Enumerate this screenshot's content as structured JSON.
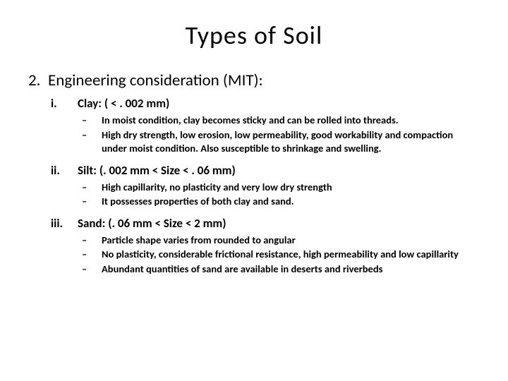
{
  "title": "Types of Soil",
  "main": {
    "marker": "2.",
    "text": "Engineering consideration (MIT):"
  },
  "sections": [
    {
      "marker": "i.",
      "heading": "Clay: ( < . 002 mm)",
      "bullets": [
        "In moist condition, clay becomes sticky and can be rolled into threads.",
        "High dry strength, low erosion, low permeability, good workability and compaction under moist condition. Also susceptible to shrinkage and swelling."
      ]
    },
    {
      "marker": "ii.",
      "heading": "Silt: (. 002 mm <  Size < . 06 mm)",
      "bullets": [
        "High capillarity, no plasticity and very low dry strength",
        "It possesses properties of both clay and sand."
      ]
    },
    {
      "marker": "iii.",
      "heading": "Sand: (. 06 mm <  Size < 2 mm)",
      "bullets": [
        "Particle shape varies from rounded to angular",
        "No plasticity, considerable frictional resistance, high permeability and low capillarity",
        "Abundant quantities of sand are available in deserts and riverbeds"
      ]
    }
  ],
  "dash": "–"
}
